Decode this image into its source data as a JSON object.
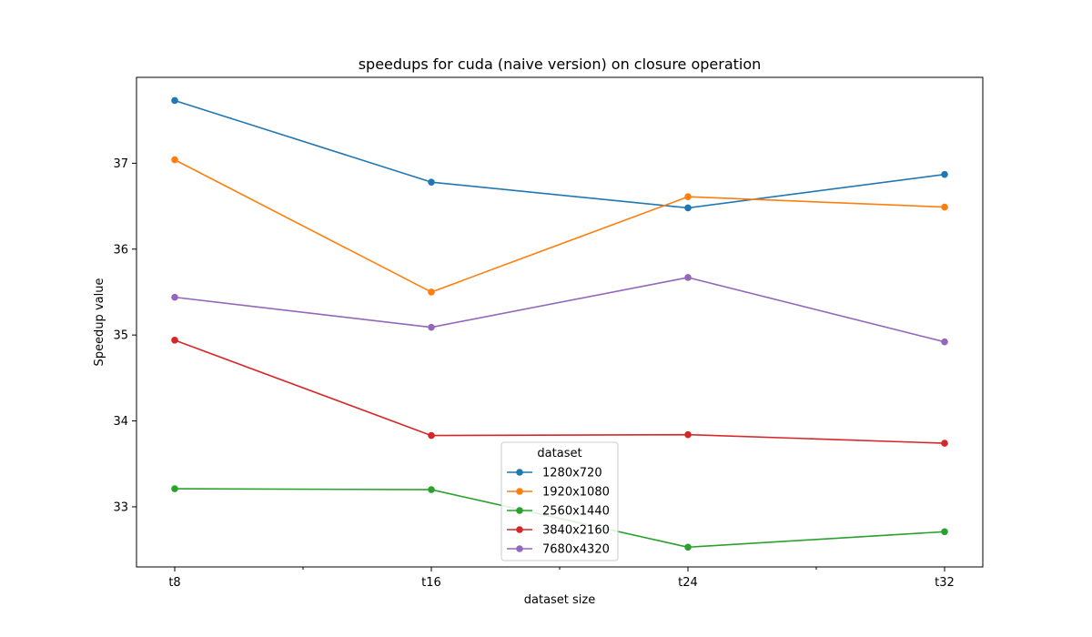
{
  "chart_data": {
    "type": "line",
    "title": "speedups for cuda (naive version) on closure operation",
    "xlabel": "dataset size",
    "ylabel": "Speedup value",
    "categories": [
      "t8",
      "t16",
      "t24",
      "t32"
    ],
    "y_ticks": [
      "33",
      "34",
      "35",
      "36",
      "37"
    ],
    "ylim": [
      32.3,
      38.0
    ],
    "grid": false,
    "legend_title": "dataset",
    "legend_position": "lower center",
    "series": [
      {
        "name": "1280x720",
        "color": "#1f77b4",
        "values": [
          37.73,
          36.78,
          36.48,
          36.87
        ]
      },
      {
        "name": "1920x1080",
        "color": "#ff7f0e",
        "values": [
          37.04,
          35.5,
          36.61,
          36.49
        ]
      },
      {
        "name": "2560x1440",
        "color": "#2ca02c",
        "values": [
          33.21,
          33.2,
          32.53,
          32.71
        ]
      },
      {
        "name": "3840x2160",
        "color": "#d62728",
        "values": [
          34.94,
          33.83,
          33.84,
          33.74
        ]
      },
      {
        "name": "7680x4320",
        "color": "#9467bd",
        "values": [
          35.44,
          35.09,
          35.67,
          34.92
        ]
      }
    ]
  }
}
